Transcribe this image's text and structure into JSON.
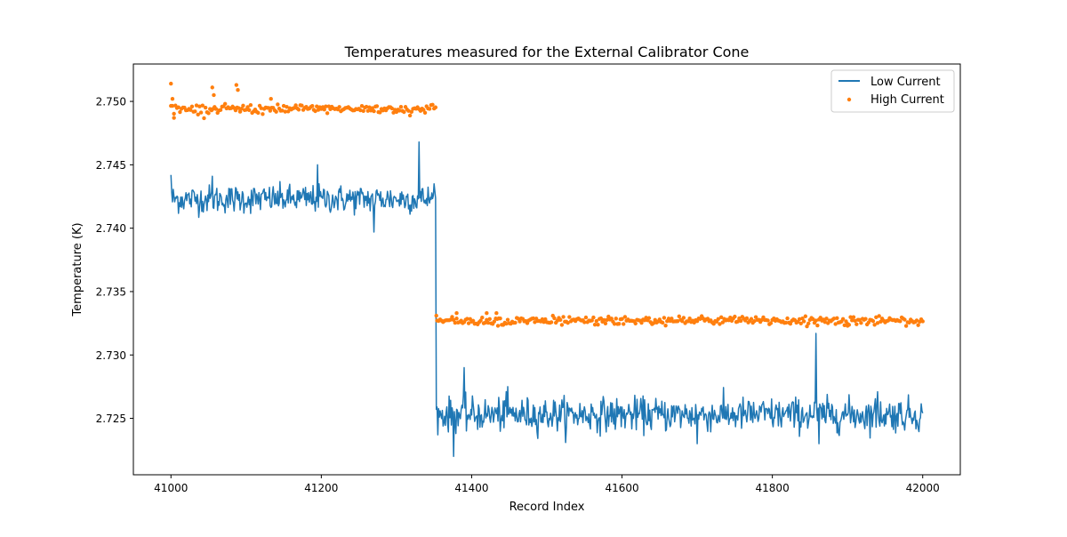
{
  "chart_data": {
    "type": "line",
    "title": "Temperatures measured for the External Calibrator Cone",
    "xlabel": "Record Index",
    "ylabel": "Temperature (K)",
    "xlim": [
      40950,
      42050
    ],
    "ylim": [
      2.72055,
      2.75295
    ],
    "x_ticks": [
      41000,
      41200,
      41400,
      41600,
      41800,
      42000
    ],
    "x_tick_labels": [
      "41000",
      "41200",
      "41400",
      "41600",
      "41800",
      "42000"
    ],
    "y_ticks": [
      2.725,
      2.73,
      2.735,
      2.74,
      2.745,
      2.75
    ],
    "y_tick_labels": [
      "2.725",
      "2.730",
      "2.735",
      "2.740",
      "2.745",
      "2.750"
    ],
    "grid": false,
    "legend_position": "top-right",
    "x_range": [
      41000,
      42000
    ],
    "step_index": 41352,
    "series": [
      {
        "name": "Low Current",
        "kind": "line",
        "color": "#1f77b4",
        "segments": [
          {
            "x_from": 41000,
            "x_to": 41352,
            "level": 2.7423,
            "noise": 0.00055
          },
          {
            "x_from": 41353,
            "x_to": 42000,
            "level": 2.7253,
            "noise": 0.00065
          }
        ],
        "spikes": [
          {
            "x": 41000,
            "y": 2.7442
          },
          {
            "x": 41055,
            "y": 2.7441
          },
          {
            "x": 41195,
            "y": 2.745
          },
          {
            "x": 41270,
            "y": 2.7397
          },
          {
            "x": 41330,
            "y": 2.7468
          },
          {
            "x": 41350,
            "y": 2.7435
          },
          {
            "x": 41355,
            "y": 2.7237
          },
          {
            "x": 41376,
            "y": 2.722
          },
          {
            "x": 41390,
            "y": 2.729
          },
          {
            "x": 41448,
            "y": 2.7275
          },
          {
            "x": 41700,
            "y": 2.723
          },
          {
            "x": 41858,
            "y": 2.7317
          },
          {
            "x": 41862,
            "y": 2.723
          },
          {
            "x": 41940,
            "y": 2.7271
          }
        ]
      },
      {
        "name": "High Current",
        "kind": "scatter",
        "color": "#ff7f0e",
        "segments": [
          {
            "x_from": 41000,
            "x_to": 41352,
            "level": 2.7494,
            "noise": 0.00018
          },
          {
            "x_from": 41353,
            "x_to": 42000,
            "level": 2.7327,
            "noise": 0.00017
          }
        ],
        "outliers": [
          {
            "x": 41000,
            "y": 2.7514
          },
          {
            "x": 41002,
            "y": 2.7502
          },
          {
            "x": 41004,
            "y": 2.7487
          },
          {
            "x": 41055,
            "y": 2.7511
          },
          {
            "x": 41057,
            "y": 2.7505
          },
          {
            "x": 41087,
            "y": 2.7513
          },
          {
            "x": 41089,
            "y": 2.7509
          },
          {
            "x": 41092,
            "y": 2.7492
          },
          {
            "x": 41133,
            "y": 2.7502
          },
          {
            "x": 41353,
            "y": 2.7331
          },
          {
            "x": 41380,
            "y": 2.7333
          },
          {
            "x": 41420,
            "y": 2.7333
          },
          {
            "x": 41433,
            "y": 2.7333
          },
          {
            "x": 41435,
            "y": 2.7323
          },
          {
            "x": 41900,
            "y": 2.7323
          }
        ]
      }
    ]
  }
}
